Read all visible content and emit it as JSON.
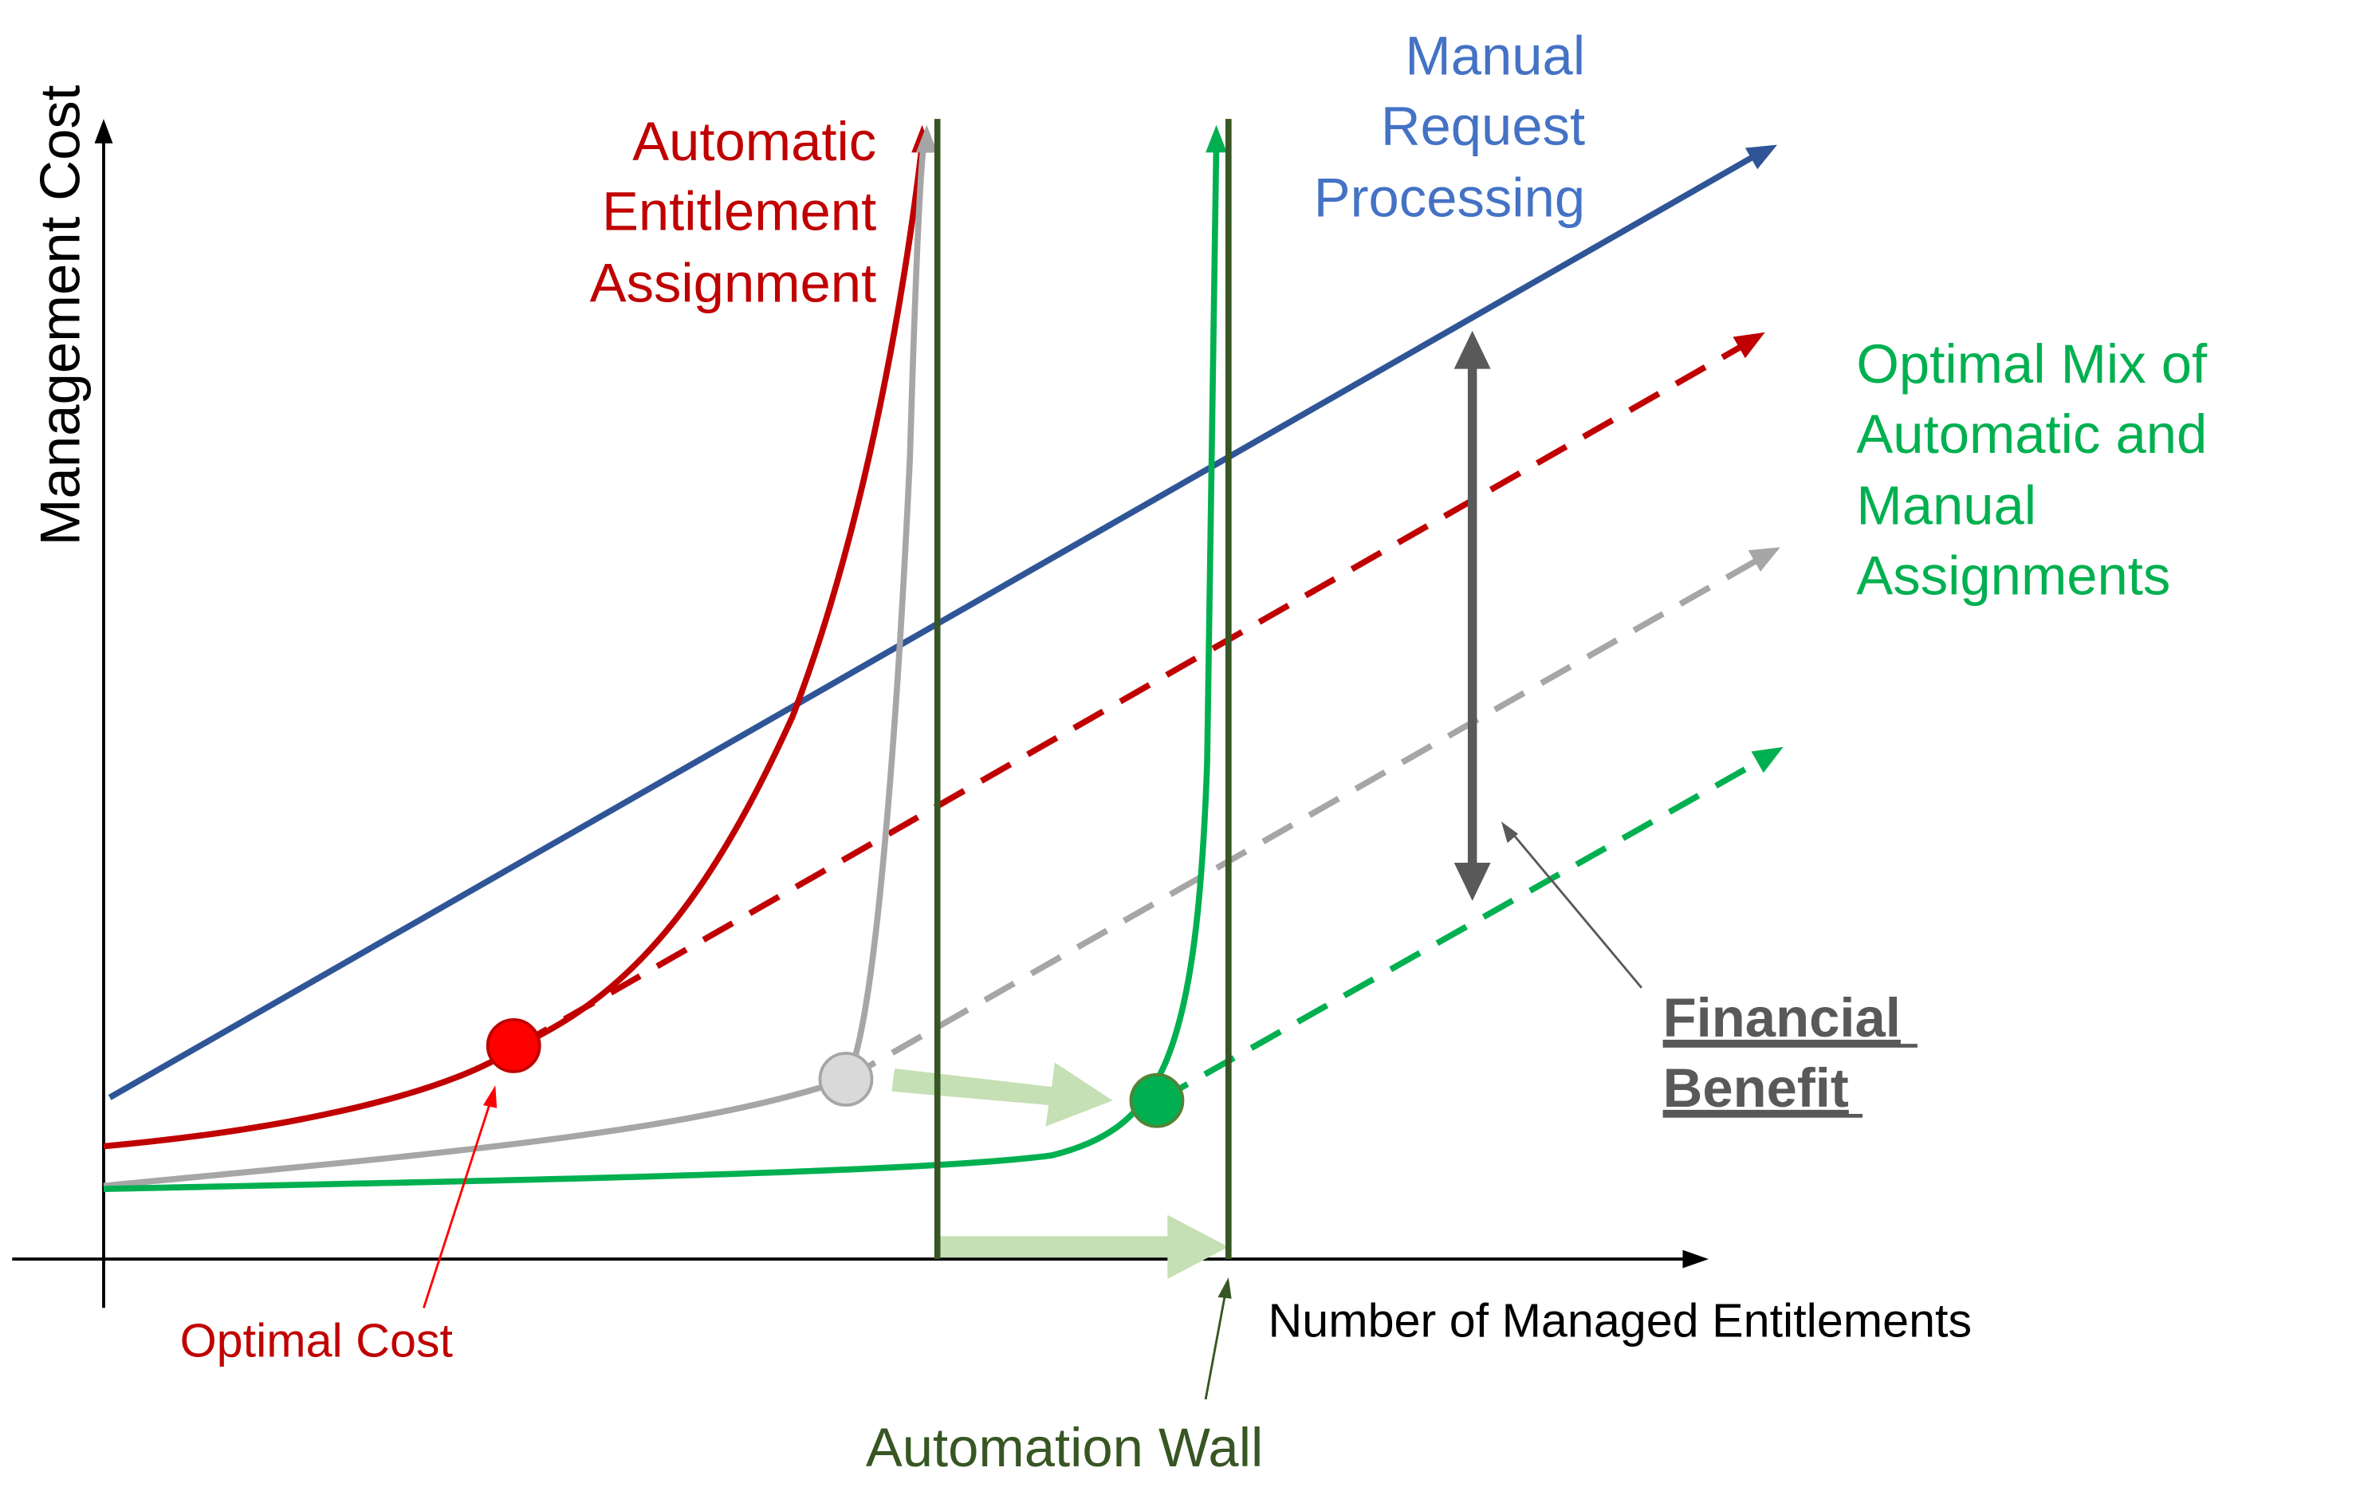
{
  "colors": {
    "red": "#c00000",
    "blue": "#2f5597",
    "blue_text": "#4472c4",
    "green": "#00b050",
    "gray": "#a6a6a6",
    "dark_gray": "#595959",
    "dark_green": "#375623",
    "light_green": "#c5e0b4",
    "dot_red": "#ff0000",
    "dot_gray": "#d9d9d9"
  },
  "axes": {
    "y_label": "Management Cost",
    "x_label": "Number of Managed Entitlements"
  },
  "labels": {
    "automatic": [
      "Automatic",
      "Entitlement",
      "Assignment"
    ],
    "manual": [
      "Manual",
      "Request",
      "Processing"
    ],
    "optimal_mix": [
      "Optimal Mix of",
      "Automatic and",
      "Manual",
      "Assignments"
    ],
    "financial": [
      "Financial",
      "Benefit"
    ],
    "optimal_cost": "Optimal Cost",
    "automation_wall": "Automation Wall"
  }
}
